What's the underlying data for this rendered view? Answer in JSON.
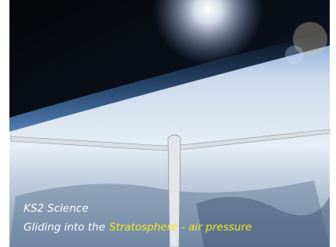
{
  "caption": {
    "line1": "KS2 Science",
    "line2_prefix": "Gliding into the",
    "line2_highlight": "Stratosphere - air pressure"
  }
}
